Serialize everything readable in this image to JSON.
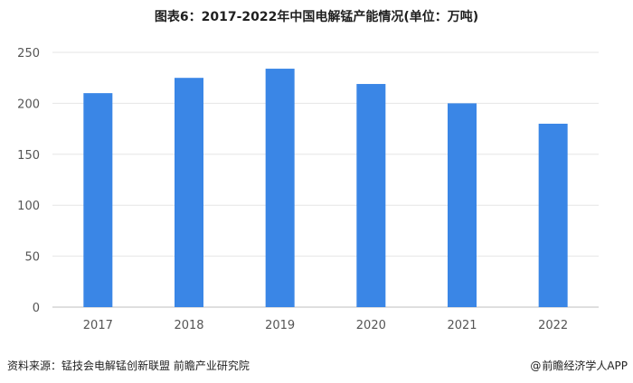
{
  "chart_data": {
    "type": "bar",
    "title": "图表6：2017-2022年中国电解锰产能情况(单位：万吨)",
    "categories": [
      "2017",
      "2018",
      "2019",
      "2020",
      "2021",
      "2022"
    ],
    "values": [
      210,
      225,
      234,
      219,
      200,
      180
    ],
    "ylim": [
      0,
      250
    ],
    "yticks": [
      0,
      50,
      100,
      150,
      200,
      250
    ],
    "grid": true,
    "bar_color": "#3a86e6",
    "xlabel": "",
    "ylabel": ""
  },
  "footer": {
    "source": "资料来源：锰技会电解锰创新联盟 前瞻产业研究院",
    "brand_symbol": "@",
    "brand": "前瞻经济学人APP"
  }
}
